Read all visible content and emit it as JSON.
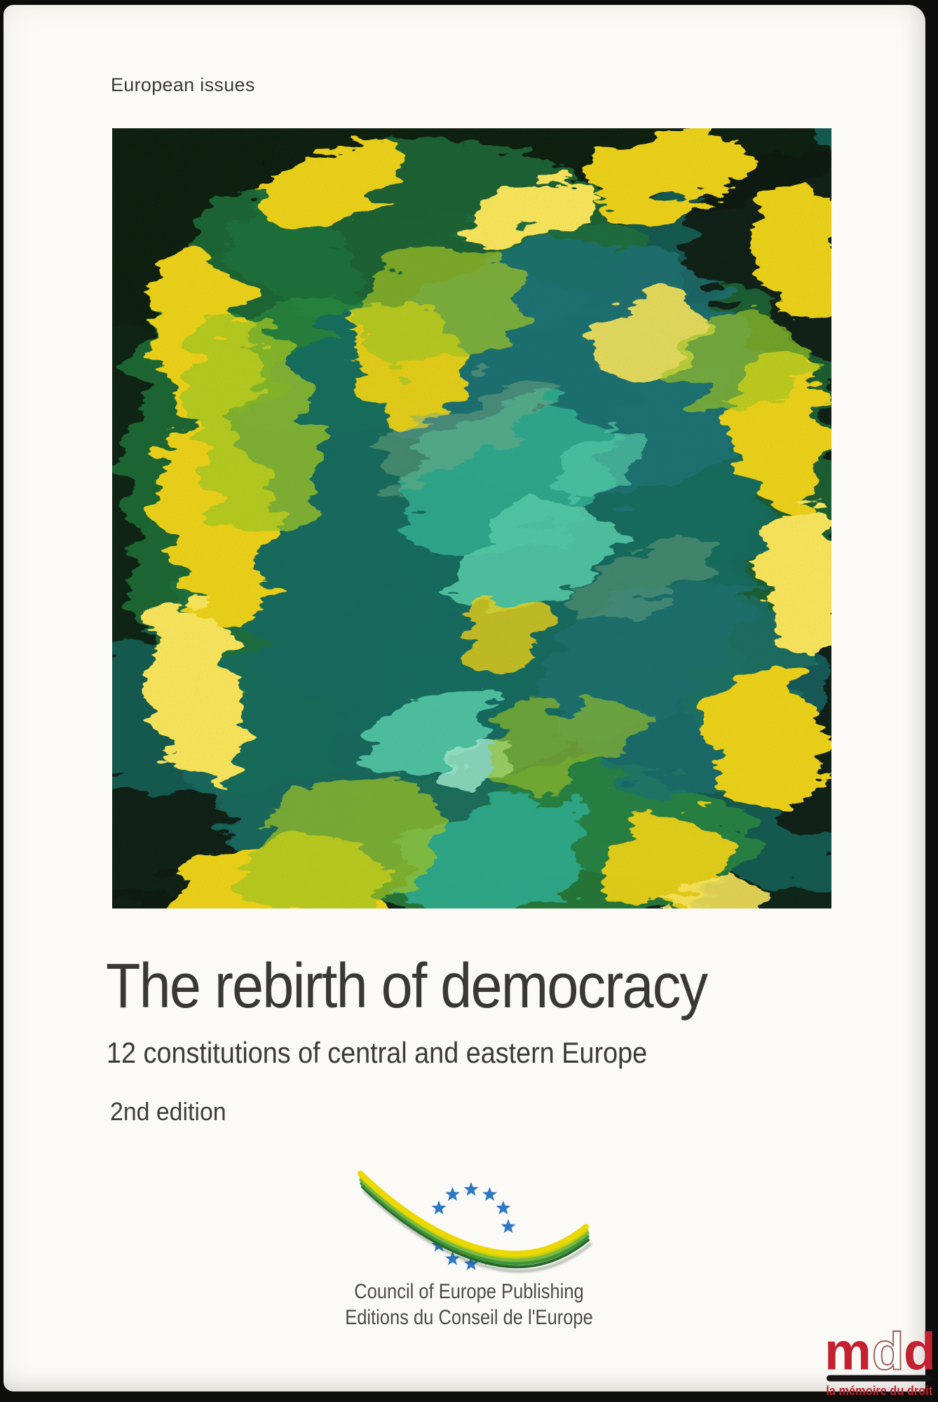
{
  "page": {
    "background": "#fbfaf6",
    "scan_border_color": "#0d0d0b"
  },
  "series": {
    "label": "European issues"
  },
  "artwork": {
    "description": "abstract-expressionist-painting-green-teal-yellow",
    "palette": {
      "base": "#14584e",
      "dark": "#081a0e",
      "green": "#20713a",
      "green2": "#2c8a3e",
      "teal": "#176a5e",
      "teal2": "#1d7173",
      "aqua": "#2faa8d",
      "aqua2": "#55cba9",
      "aqua3": "#9fe9cd",
      "yellow": "#f2d312",
      "yellow2": "#ffe75a",
      "ygreen": "#a6c823",
      "sage": "#7fae86"
    }
  },
  "title_block": {
    "title": "The rebirth of democracy",
    "subtitle": "12 constitutions of central and eastern Europe",
    "edition": "2nd edition",
    "text_color": "#383836"
  },
  "publisher": {
    "line1": "Council of Europe Publishing",
    "line2": "Editions du Conseil de l'Europe",
    "text_color": "#4b4a45",
    "logo": {
      "star_color": "#2e77c5",
      "star_count": 12,
      "visible_stars": 10,
      "swoosh_colors": [
        "#27682c",
        "#3f9437",
        "#7cb844",
        "#c7d200",
        "#ecd800"
      ]
    }
  },
  "watermark": {
    "letters_left": "m",
    "letters_mid": "d",
    "letters_right": "d",
    "tagline": "la mémoire du droit",
    "red": "#c32030",
    "bar_color": "#151515"
  }
}
